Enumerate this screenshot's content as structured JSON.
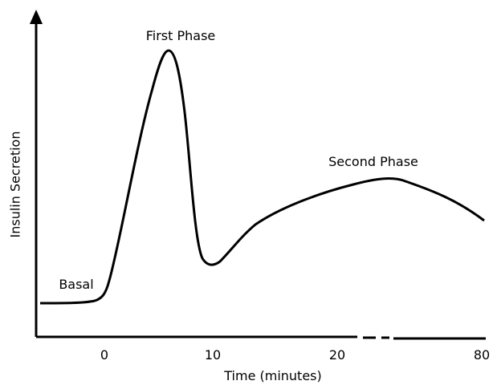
{
  "labels": {
    "y_axis": "Insulin Secretion",
    "x_axis": "Time (minutes)",
    "first_phase": "First Phase",
    "second_phase": "Second Phase",
    "basal": "Basal"
  },
  "x_ticks": [
    0,
    10,
    20,
    80
  ]
}
